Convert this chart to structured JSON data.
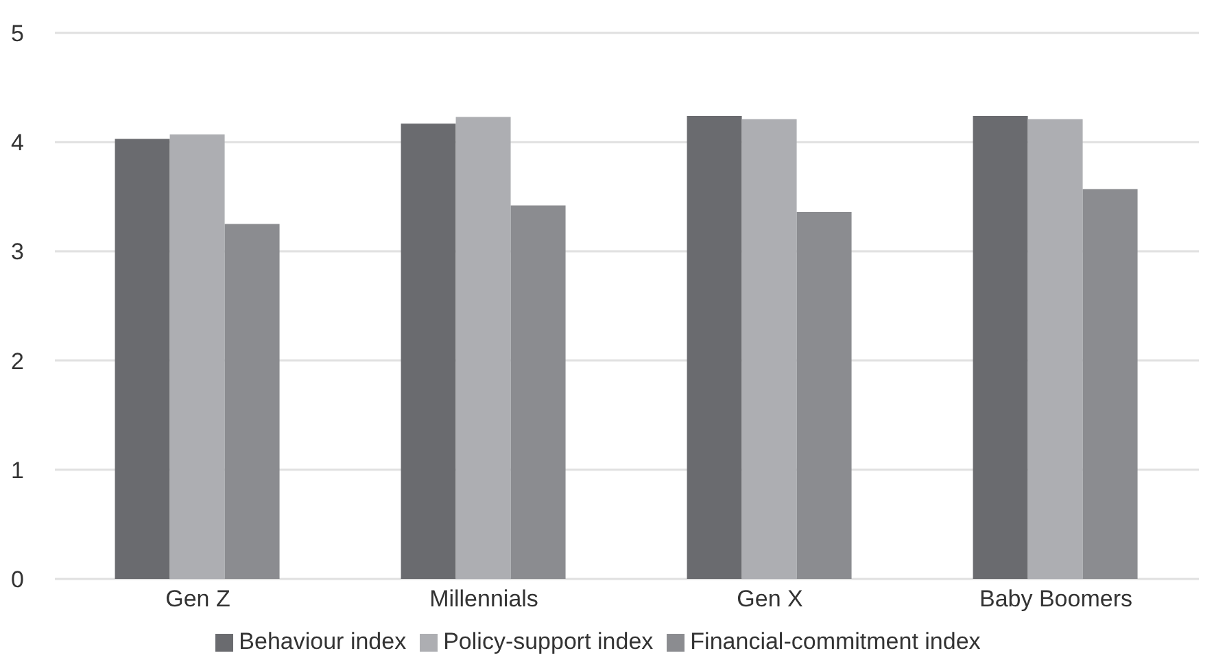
{
  "chart_data": {
    "type": "bar",
    "categories": [
      "Gen Z",
      "Millennials",
      "Gen X",
      "Baby Boomers"
    ],
    "series": [
      {
        "name": "Behaviour index",
        "color": "#6a6b6f",
        "values": [
          4.03,
          4.17,
          4.24,
          4.24
        ]
      },
      {
        "name": "Policy-support index",
        "color": "#adaeb2",
        "values": [
          4.07,
          4.23,
          4.21,
          4.21
        ]
      },
      {
        "name": "Financial-commitment index",
        "color": "#8b8c90",
        "values": [
          3.25,
          3.42,
          3.36,
          3.57
        ]
      }
    ],
    "ylim": [
      0,
      5
    ],
    "yticks": [
      0,
      1,
      2,
      3,
      4,
      5
    ],
    "grid": "y",
    "legend": "bottom"
  }
}
